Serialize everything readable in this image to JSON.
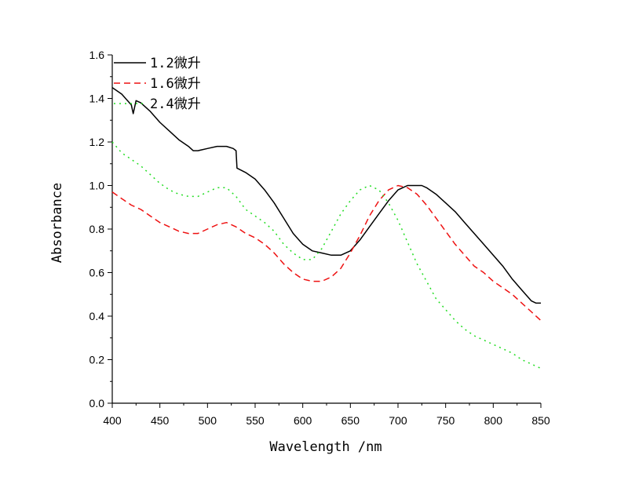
{
  "chart_data": {
    "type": "line",
    "xlabel": "Wavelength /nm",
    "ylabel": "Absorbance",
    "xlim": [
      400,
      850
    ],
    "ylim": [
      0.0,
      1.6
    ],
    "x_ticks": [
      "400",
      "450",
      "500",
      "550",
      "600",
      "650",
      "700",
      "750",
      "800",
      "850"
    ],
    "y_ticks": [
      "0.0",
      "0.2",
      "0.4",
      "0.6",
      "0.8",
      "1.0",
      "1.2",
      "1.4",
      "1.6"
    ],
    "grid": false,
    "legend_position": "top-left",
    "series": [
      {
        "name": "1.2微升",
        "color": "#000000",
        "style": "solid",
        "x": [
          400,
          410,
          420,
          422,
          425,
          430,
          440,
          450,
          460,
          470,
          480,
          485,
          490,
          500,
          510,
          520,
          527,
          530,
          531,
          540,
          550,
          560,
          570,
          580,
          590,
          600,
          610,
          620,
          630,
          640,
          650,
          660,
          670,
          680,
          690,
          700,
          710,
          720,
          725,
          730,
          740,
          750,
          760,
          770,
          780,
          790,
          800,
          810,
          820,
          830,
          840,
          845,
          850
        ],
        "y": [
          1.45,
          1.42,
          1.37,
          1.33,
          1.39,
          1.38,
          1.34,
          1.29,
          1.25,
          1.21,
          1.18,
          1.16,
          1.16,
          1.17,
          1.18,
          1.18,
          1.17,
          1.16,
          1.08,
          1.06,
          1.03,
          0.98,
          0.92,
          0.85,
          0.78,
          0.73,
          0.7,
          0.69,
          0.68,
          0.68,
          0.7,
          0.75,
          0.81,
          0.87,
          0.93,
          0.98,
          1.0,
          1.0,
          1.0,
          0.99,
          0.96,
          0.92,
          0.88,
          0.83,
          0.78,
          0.73,
          0.68,
          0.63,
          0.57,
          0.52,
          0.47,
          0.46,
          0.46
        ]
      },
      {
        "name": "1.6微升",
        "color": "#ee1111",
        "style": "dashed",
        "x": [
          400,
          410,
          420,
          430,
          440,
          450,
          460,
          470,
          480,
          490,
          500,
          510,
          520,
          530,
          540,
          550,
          560,
          570,
          580,
          590,
          600,
          610,
          620,
          630,
          640,
          650,
          660,
          670,
          680,
          690,
          700,
          710,
          720,
          730,
          740,
          750,
          760,
          770,
          780,
          790,
          800,
          810,
          820,
          830,
          840,
          850
        ],
        "y": [
          0.97,
          0.94,
          0.91,
          0.89,
          0.86,
          0.83,
          0.81,
          0.79,
          0.78,
          0.78,
          0.8,
          0.82,
          0.83,
          0.81,
          0.78,
          0.76,
          0.73,
          0.69,
          0.64,
          0.6,
          0.57,
          0.56,
          0.56,
          0.58,
          0.62,
          0.69,
          0.77,
          0.86,
          0.93,
          0.98,
          1.0,
          0.99,
          0.96,
          0.91,
          0.85,
          0.79,
          0.73,
          0.68,
          0.63,
          0.6,
          0.56,
          0.53,
          0.5,
          0.46,
          0.42,
          0.38
        ]
      },
      {
        "name": "2.4微升",
        "color": "#22dd22",
        "style": "dotted",
        "x": [
          400,
          410,
          420,
          430,
          440,
          450,
          460,
          470,
          480,
          490,
          500,
          510,
          520,
          530,
          540,
          550,
          560,
          570,
          580,
          590,
          600,
          610,
          620,
          630,
          640,
          650,
          660,
          670,
          680,
          690,
          700,
          710,
          720,
          730,
          740,
          750,
          760,
          770,
          780,
          790,
          800,
          810,
          820,
          830,
          840,
          850
        ],
        "y": [
          1.2,
          1.15,
          1.12,
          1.09,
          1.05,
          1.01,
          0.98,
          0.96,
          0.95,
          0.95,
          0.97,
          0.99,
          0.99,
          0.95,
          0.89,
          0.86,
          0.83,
          0.79,
          0.73,
          0.69,
          0.66,
          0.66,
          0.71,
          0.79,
          0.87,
          0.93,
          0.98,
          1.0,
          0.98,
          0.92,
          0.84,
          0.74,
          0.64,
          0.56,
          0.48,
          0.43,
          0.38,
          0.34,
          0.31,
          0.29,
          0.27,
          0.25,
          0.23,
          0.2,
          0.18,
          0.16
        ]
      }
    ]
  }
}
